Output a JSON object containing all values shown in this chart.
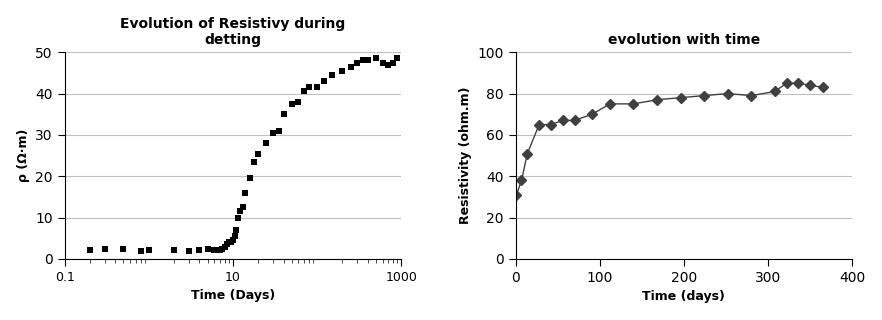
{
  "left_title": "Evolution of Resistivy during\ndetting",
  "left_xlabel": "Time (Days)",
  "left_ylabel": "ρ (Ω·m)",
  "left_x": [
    0.2,
    0.3,
    0.5,
    0.8,
    1.0,
    2.0,
    3.0,
    4.0,
    5.0,
    6.0,
    7.0,
    7.5,
    8.0,
    8.5,
    9.0,
    9.5,
    10.0,
    10.5,
    11.0,
    11.5,
    12.0,
    13.0,
    14.0,
    16.0,
    18.0,
    20.0,
    25.0,
    30.0,
    35.0,
    40.0,
    50.0,
    60.0,
    70.0,
    80.0,
    100.0,
    120.0,
    150.0,
    200.0,
    250.0,
    300.0,
    350.0,
    400.0,
    500.0,
    600.0,
    700.0,
    800.0,
    900.0
  ],
  "left_y": [
    2.2,
    2.5,
    2.3,
    2.0,
    2.2,
    2.1,
    2.0,
    2.2,
    2.3,
    2.2,
    2.2,
    2.5,
    3.0,
    3.5,
    4.0,
    4.2,
    4.5,
    5.5,
    7.0,
    10.0,
    11.5,
    12.5,
    16.0,
    19.5,
    23.5,
    25.5,
    28.0,
    30.5,
    31.0,
    35.0,
    37.5,
    38.0,
    40.5,
    41.5,
    41.5,
    43.0,
    44.5,
    45.5,
    46.5,
    47.5,
    48.0,
    48.0,
    48.5,
    47.5,
    47.0,
    47.5,
    48.5
  ],
  "left_xlim": [
    0.1,
    1000
  ],
  "left_ylim": [
    0,
    50
  ],
  "left_yticks": [
    0,
    10,
    20,
    30,
    40,
    50
  ],
  "left_xticks": [
    0.1,
    10,
    1000
  ],
  "left_xticklabels": [
    "0.1",
    "10",
    "1000"
  ],
  "right_title": "evolution with time",
  "right_xlabel": "Time (days)",
  "right_ylabel": "Resistivity (ohm.m)",
  "right_x": [
    1,
    7,
    14,
    28,
    42,
    56,
    70,
    91,
    112,
    140,
    168,
    196,
    224,
    252,
    280,
    308,
    322,
    336,
    350,
    365
  ],
  "right_y": [
    31,
    38,
    51,
    65,
    65,
    67,
    67,
    70,
    75,
    75,
    77,
    78,
    79,
    80,
    79,
    81,
    85,
    85,
    84,
    83
  ],
  "right_xlim": [
    0,
    400
  ],
  "right_ylim": [
    0,
    100
  ],
  "right_xticks": [
    0,
    100,
    200,
    300,
    400
  ],
  "right_yticks": [
    0,
    20,
    40,
    60,
    80,
    100
  ],
  "marker_color": "#404040",
  "bg_color": "#ffffff",
  "grid_color": "#c0c0c0"
}
